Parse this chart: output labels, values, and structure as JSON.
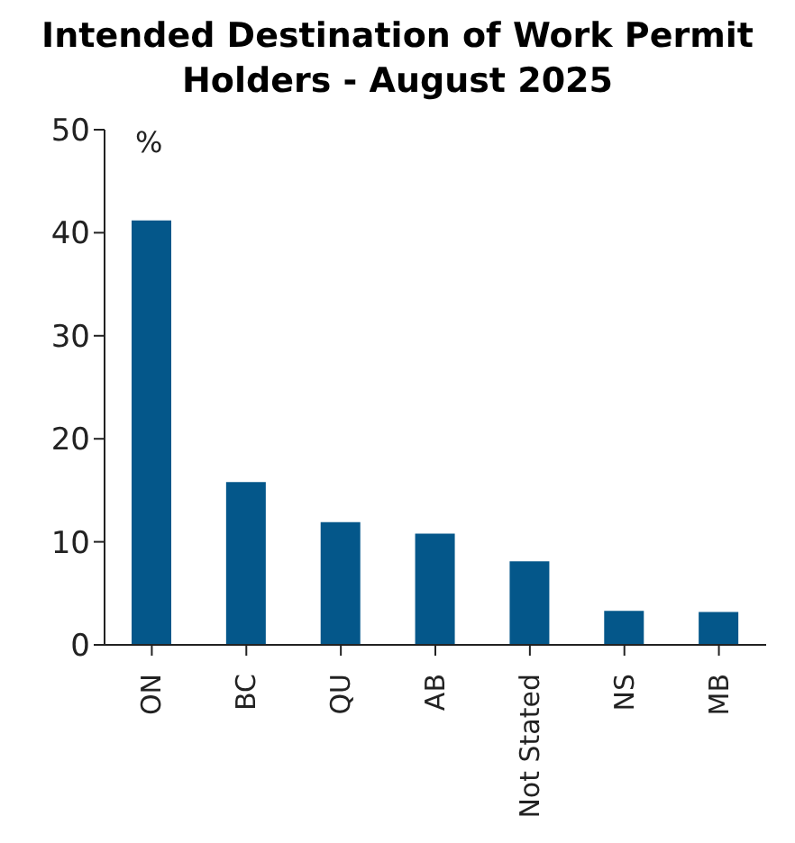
{
  "chart_data": {
    "type": "bar",
    "title": "Intended Destination of Work Permit Holders - August 2025",
    "ylabel": "%",
    "categories": [
      "ON",
      "BC",
      "QU",
      "AB",
      "Not Stated",
      "NS",
      "MB"
    ],
    "values": [
      41.2,
      15.8,
      11.9,
      10.8,
      8.1,
      3.3,
      3.2
    ],
    "color": "#04578a",
    "ylim": [
      0,
      50
    ],
    "yticks": [
      0,
      10,
      20,
      30,
      40,
      50
    ],
    "grid": false,
    "legend": false
  }
}
